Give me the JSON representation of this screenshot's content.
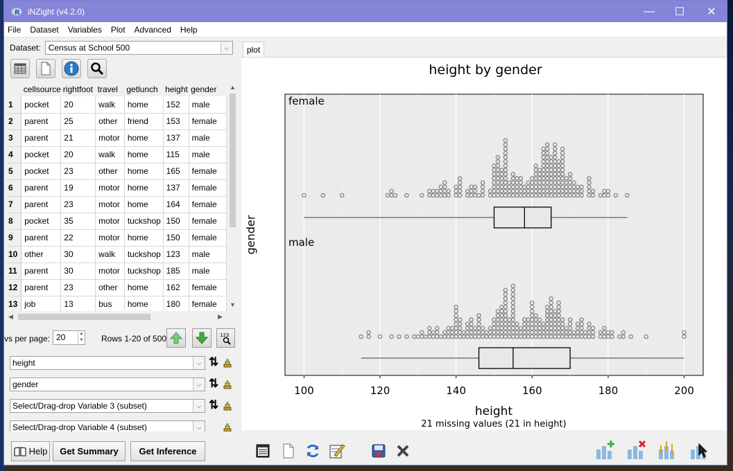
{
  "window": {
    "title": "iNZight (v4.2.0)",
    "minimize": "—",
    "maximize": "☐",
    "close": "✕"
  },
  "menu": [
    "File",
    "Dataset",
    "Variables",
    "Plot",
    "Advanced",
    "Help"
  ],
  "dataset": {
    "label": "Dataset:",
    "value": "Census at School 500"
  },
  "table": {
    "columns": [
      "cellsource",
      "rightfoot",
      "travel",
      "getlunch",
      "height",
      "gender"
    ],
    "rows": [
      [
        "1",
        "pocket",
        "20",
        "walk",
        "home",
        "152",
        "male"
      ],
      [
        "2",
        "parent",
        "25",
        "other",
        "friend",
        "153",
        "female"
      ],
      [
        "3",
        "parent",
        "21",
        "motor",
        "home",
        "137",
        "male"
      ],
      [
        "4",
        "pocket",
        "20",
        "walk",
        "home",
        "115",
        "male"
      ],
      [
        "5",
        "pocket",
        "23",
        "other",
        "home",
        "165",
        "female"
      ],
      [
        "6",
        "parent",
        "19",
        "motor",
        "home",
        "137",
        "female"
      ],
      [
        "7",
        "parent",
        "23",
        "motor",
        "home",
        "164",
        "female"
      ],
      [
        "8",
        "pocket",
        "35",
        "motor",
        "tuckshop",
        "150",
        "female"
      ],
      [
        "9",
        "parent",
        "22",
        "motor",
        "home",
        "150",
        "female"
      ],
      [
        "10",
        "other",
        "30",
        "walk",
        "tuckshop",
        "123",
        "male"
      ],
      [
        "11",
        "parent",
        "30",
        "motor",
        "tuckshop",
        "185",
        "male"
      ],
      [
        "12",
        "parent",
        "23",
        "other",
        "home",
        "162",
        "female"
      ],
      [
        "13",
        "job",
        "13",
        "bus",
        "home",
        "180",
        "female"
      ]
    ]
  },
  "paging": {
    "rows_per_page_label": "vs per page:",
    "rows_per_page": "20",
    "rows_info": "Rows 1-20 of 500",
    "spin_up": "▲",
    "spin_down": "▼"
  },
  "variables": [
    {
      "value": "height"
    },
    {
      "value": "gender"
    },
    {
      "value": "Select/Drag-drop Variable 3 (subset)"
    },
    {
      "value": "Select/Drag-drop Variable 4 (subset)"
    }
  ],
  "swap_glyph": "⇅",
  "dropdown_glyph": "⌵",
  "bottom": {
    "help": "Help",
    "summary": "Get Summary",
    "inference": "Get Inference"
  },
  "plot_tab": "plot",
  "chart_data": {
    "type": "dotplot",
    "title": "height by gender",
    "xlabel": "height",
    "ylabel": "gender",
    "subtitle": "21 missing values (21 in height)",
    "xlim": [
      95,
      205
    ],
    "x_ticks": [
      100,
      120,
      140,
      160,
      180,
      200
    ],
    "panels": [
      {
        "name": "female",
        "box": {
          "min": 100,
          "q1": 150,
          "median": 158,
          "q3": 165,
          "max": 185
        },
        "stack_counts": [
          [
            100,
            1
          ],
          [
            105,
            1
          ],
          [
            110,
            1
          ],
          [
            122,
            1
          ],
          [
            123,
            2
          ],
          [
            124,
            1
          ],
          [
            127,
            1
          ],
          [
            131,
            1
          ],
          [
            133,
            2
          ],
          [
            134,
            2
          ],
          [
            135,
            2
          ],
          [
            136,
            3
          ],
          [
            137,
            4
          ],
          [
            138,
            2
          ],
          [
            140,
            3
          ],
          [
            141,
            5
          ],
          [
            143,
            2
          ],
          [
            144,
            3
          ],
          [
            145,
            3
          ],
          [
            146,
            1
          ],
          [
            147,
            4
          ],
          [
            149,
            2
          ],
          [
            150,
            8
          ],
          [
            151,
            10
          ],
          [
            152,
            7
          ],
          [
            153,
            14
          ],
          [
            154,
            4
          ],
          [
            155,
            6
          ],
          [
            156,
            5
          ],
          [
            157,
            5
          ],
          [
            158,
            3
          ],
          [
            159,
            4
          ],
          [
            160,
            5
          ],
          [
            161,
            8
          ],
          [
            162,
            7
          ],
          [
            163,
            12
          ],
          [
            164,
            13
          ],
          [
            165,
            10
          ],
          [
            166,
            13
          ],
          [
            167,
            9
          ],
          [
            168,
            12
          ],
          [
            169,
            5
          ],
          [
            170,
            6
          ],
          [
            171,
            4
          ],
          [
            172,
            3
          ],
          [
            173,
            3
          ],
          [
            175,
            5
          ],
          [
            176,
            2
          ],
          [
            178,
            1
          ],
          [
            179,
            2
          ],
          [
            180,
            2
          ],
          [
            182,
            1
          ],
          [
            185,
            1
          ]
        ]
      },
      {
        "name": "male",
        "box": {
          "min": 115,
          "q1": 146,
          "median": 155,
          "q3": 170,
          "max": 200
        },
        "stack_counts": [
          [
            115,
            1
          ],
          [
            117,
            2
          ],
          [
            120,
            1
          ],
          [
            123,
            1
          ],
          [
            125,
            1
          ],
          [
            127,
            1
          ],
          [
            129,
            1
          ],
          [
            130,
            1
          ],
          [
            131,
            2
          ],
          [
            132,
            1
          ],
          [
            133,
            3
          ],
          [
            134,
            2
          ],
          [
            135,
            3
          ],
          [
            136,
            1
          ],
          [
            137,
            2
          ],
          [
            138,
            3
          ],
          [
            139,
            3
          ],
          [
            140,
            8
          ],
          [
            141,
            5
          ],
          [
            142,
            2
          ],
          [
            143,
            4
          ],
          [
            144,
            5
          ],
          [
            145,
            3
          ],
          [
            146,
            6
          ],
          [
            147,
            3
          ],
          [
            148,
            2
          ],
          [
            149,
            3
          ],
          [
            150,
            5
          ],
          [
            151,
            7
          ],
          [
            152,
            8
          ],
          [
            153,
            12
          ],
          [
            154,
            5
          ],
          [
            155,
            13
          ],
          [
            156,
            4
          ],
          [
            157,
            3
          ],
          [
            158,
            5
          ],
          [
            159,
            5
          ],
          [
            160,
            9
          ],
          [
            161,
            6
          ],
          [
            162,
            5
          ],
          [
            163,
            4
          ],
          [
            164,
            8
          ],
          [
            165,
            10
          ],
          [
            166,
            7
          ],
          [
            167,
            9
          ],
          [
            168,
            5
          ],
          [
            169,
            3
          ],
          [
            170,
            5
          ],
          [
            171,
            2
          ],
          [
            172,
            4
          ],
          [
            173,
            5
          ],
          [
            174,
            2
          ],
          [
            175,
            4
          ],
          [
            176,
            3
          ],
          [
            178,
            2
          ],
          [
            179,
            3
          ],
          [
            180,
            2
          ],
          [
            181,
            2
          ],
          [
            183,
            1
          ],
          [
            184,
            2
          ],
          [
            186,
            1
          ],
          [
            190,
            1
          ],
          [
            200,
            2
          ]
        ]
      }
    ]
  }
}
